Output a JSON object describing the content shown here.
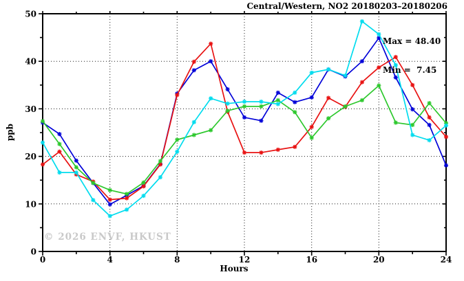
{
  "title": "Central/Western, NO2 20180203–20180206",
  "annotation": {
    "max_label": "Max = 48.40",
    "min_label": "Min =  7.45"
  },
  "watermark": "© 2026 ENVF, HKUST",
  "chart_data": {
    "type": "line",
    "title": "Central/Western, NO2 20180203–20180206",
    "xlabel": "Hours",
    "ylabel": "ppb",
    "xlim": [
      0,
      24
    ],
    "ylim": [
      0,
      50
    ],
    "xticks_major": [
      0,
      4,
      8,
      12,
      16,
      20,
      24
    ],
    "xticks_minor": [
      2,
      6,
      10,
      14,
      18,
      22
    ],
    "yticks_major": [
      0,
      10,
      20,
      30,
      40,
      50
    ],
    "yticks_minor": [
      5,
      15,
      25,
      35,
      45
    ],
    "grid_x": [
      4,
      8,
      12,
      16,
      20
    ],
    "grid_y": [
      10,
      20,
      30,
      40
    ],
    "grid": true,
    "legend_position": "none",
    "max": 48.4,
    "min": 7.45,
    "x": [
      0,
      1,
      2,
      3,
      4,
      5,
      6,
      7,
      8,
      9,
      10,
      11,
      12,
      13,
      14,
      15,
      16,
      17,
      18,
      19,
      20,
      21,
      22,
      23,
      24
    ],
    "series": [
      {
        "name": "blue",
        "color": "#0000d8",
        "marker": "asterisk",
        "values": [
          27.1,
          24.7,
          19.1,
          14.4,
          9.9,
          11.8,
          13.8,
          18.4,
          33.2,
          38.1,
          40.0,
          34.1,
          28.2,
          27.5,
          33.4,
          31.4,
          32.4,
          38.3,
          36.8,
          40.0,
          44.9,
          36.6,
          29.9,
          26.6,
          18.1
        ]
      },
      {
        "name": "red",
        "color": "#e81212",
        "marker": "asterisk",
        "values": [
          18.3,
          21.0,
          16.2,
          14.7,
          10.9,
          11.2,
          13.7,
          18.3,
          32.9,
          39.9,
          43.7,
          29.4,
          20.8,
          20.8,
          21.4,
          22.0,
          26.2,
          32.3,
          30.4,
          35.6,
          38.7,
          40.9,
          35.0,
          28.2,
          24.1
        ]
      },
      {
        "name": "green",
        "color": "#2dc82d",
        "marker": "asterisk",
        "values": [
          27.4,
          22.6,
          17.7,
          14.4,
          12.9,
          12.1,
          14.5,
          19.0,
          23.5,
          24.5,
          25.5,
          29.6,
          30.5,
          30.5,
          31.8,
          29.3,
          23.9,
          28.0,
          30.5,
          31.8,
          34.9,
          27.1,
          26.6,
          31.2,
          27.0
        ]
      },
      {
        "name": "cyan",
        "color": "#00dcee",
        "marker": "asterisk",
        "values": [
          22.9,
          16.6,
          16.6,
          10.8,
          7.45,
          8.8,
          11.7,
          15.6,
          21.0,
          27.2,
          32.2,
          31.1,
          31.5,
          31.5,
          31.0,
          33.4,
          37.6,
          38.3,
          37.0,
          48.4,
          45.7,
          39.2,
          24.5,
          23.4,
          26.5
        ]
      }
    ]
  }
}
